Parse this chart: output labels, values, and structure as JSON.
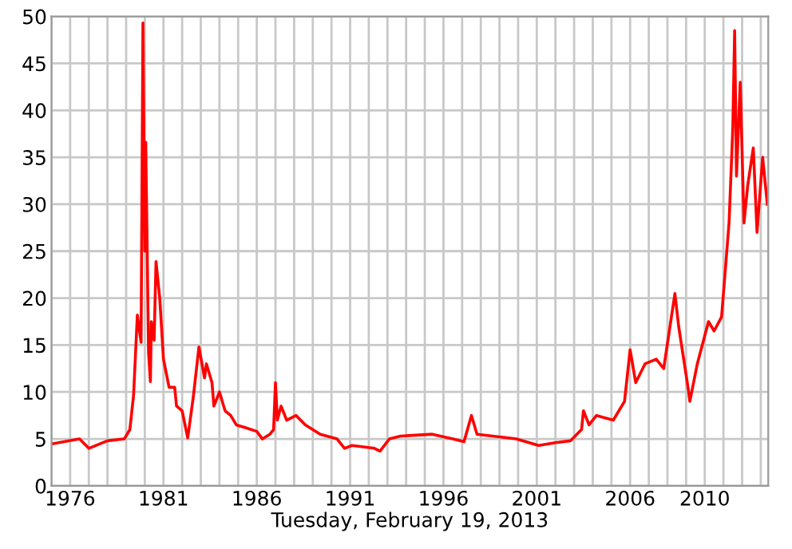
{
  "chart_data": {
    "type": "line",
    "xlabel": "Tuesday, February 19, 2013",
    "x": [
      1975.1,
      1976.5,
      1977.0,
      1978.0,
      1978.9,
      1979.2,
      1979.4,
      1979.6,
      1979.8,
      1979.9,
      1980.0,
      1980.05,
      1980.2,
      1980.3,
      1980.35,
      1980.5,
      1980.6,
      1980.8,
      1981.0,
      1981.3,
      1981.6,
      1981.7,
      1982.0,
      1982.3,
      1982.6,
      1982.9,
      1983.2,
      1983.3,
      1983.6,
      1983.7,
      1984.0,
      1984.3,
      1984.6,
      1984.9,
      1985.4,
      1986.0,
      1986.3,
      1986.7,
      1986.9,
      1987.0,
      1987.1,
      1987.3,
      1987.6,
      1988.1,
      1988.6,
      1989.4,
      1990.3,
      1990.7,
      1991.1,
      1992.3,
      1992.6,
      1993.1,
      1993.7,
      1995.4,
      1996.5,
      1997.1,
      1997.5,
      1997.8,
      1999.1,
      1999.9,
      2001.1,
      2002.0,
      2002.8,
      2003.4,
      2003.5,
      2003.8,
      2004.2,
      2005.1,
      2005.7,
      2006.0,
      2006.3,
      2006.8,
      2007.4,
      2007.8,
      2008.4,
      2008.6,
      2009.1,
      2009.2,
      2009.6,
      2010.2,
      2010.5,
      2010.9,
      2011.3,
      2011.5,
      2011.6,
      2011.7,
      2011.9,
      2012.1,
      2012.3,
      2012.6,
      2012.8,
      2013.1,
      2013.35
    ],
    "series": [
      {
        "color": "#ff0000",
        "values": [
          4.5,
          5.0,
          4.0,
          4.8,
          5.0,
          6.0,
          9.7,
          18.2,
          15.3,
          49.3,
          25,
          36.6,
          14.2,
          11.1,
          17.5,
          15.5,
          23.9,
          20,
          13.5,
          10.5,
          10.5,
          8.5,
          8,
          5.1,
          9.5,
          14.8,
          11.5,
          13,
          11,
          8.5,
          10,
          8,
          7.5,
          6.5,
          6.2,
          5.8,
          5.0,
          5.5,
          6,
          11,
          7,
          8.5,
          7,
          7.5,
          6.5,
          5.5,
          5.0,
          4.0,
          4.3,
          4.0,
          3.7,
          5.0,
          5.3,
          5.5,
          5.0,
          4.7,
          7.5,
          5.5,
          5.2,
          5.0,
          4.3,
          4.6,
          4.8,
          6.0,
          8,
          6.5,
          7.5,
          7.0,
          9,
          14.5,
          11,
          13,
          13.5,
          12.5,
          20.5,
          17,
          10.5,
          9,
          13,
          17.5,
          16.5,
          18,
          28,
          38,
          48.5,
          33,
          43,
          28,
          32,
          36,
          27,
          35,
          30
        ]
      }
    ],
    "xlim": [
      1975.0,
      2013.4
    ],
    "ylim": [
      0,
      50
    ],
    "xticks": [
      {
        "value": 1975,
        "label": null
      },
      1976,
      {
        "value": 1977,
        "label": null
      },
      {
        "value": 1978,
        "label": null
      },
      {
        "value": 1979,
        "label": null
      },
      {
        "value": 1980,
        "label": null
      },
      1981,
      {
        "value": 1982,
        "label": null
      },
      {
        "value": 1983,
        "label": null
      },
      {
        "value": 1984,
        "label": null
      },
      {
        "value": 1985,
        "label": null
      },
      1986,
      {
        "value": 1987,
        "label": null
      },
      {
        "value": 1988,
        "label": null
      },
      {
        "value": 1989,
        "label": null
      },
      {
        "value": 1990,
        "label": null
      },
      1991,
      {
        "value": 1992,
        "label": null
      },
      {
        "value": 1993,
        "label": null
      },
      {
        "value": 1994,
        "label": null
      },
      {
        "value": 1995,
        "label": null
      },
      1996,
      {
        "value": 1997,
        "label": null
      },
      {
        "value": 1998,
        "label": null
      },
      {
        "value": 1999,
        "label": null
      },
      {
        "value": 2000,
        "label": null
      },
      2001,
      {
        "value": 2002,
        "label": null
      },
      {
        "value": 2003,
        "label": null
      },
      {
        "value": 2004,
        "label": null
      },
      {
        "value": 2005,
        "label": null
      },
      2006,
      {
        "value": 2007,
        "label": null
      },
      {
        "value": 2008,
        "label": null
      },
      {
        "value": 2009,
        "label": null
      },
      2010,
      {
        "value": 2011,
        "label": null
      },
      {
        "value": 2012,
        "label": null
      },
      {
        "value": 2013,
        "label": null
      }
    ],
    "yticks": [
      0,
      5,
      10,
      15,
      20,
      25,
      30,
      35,
      40,
      45,
      50
    ],
    "grid": true,
    "marker": "none",
    "line_style": "solid"
  }
}
